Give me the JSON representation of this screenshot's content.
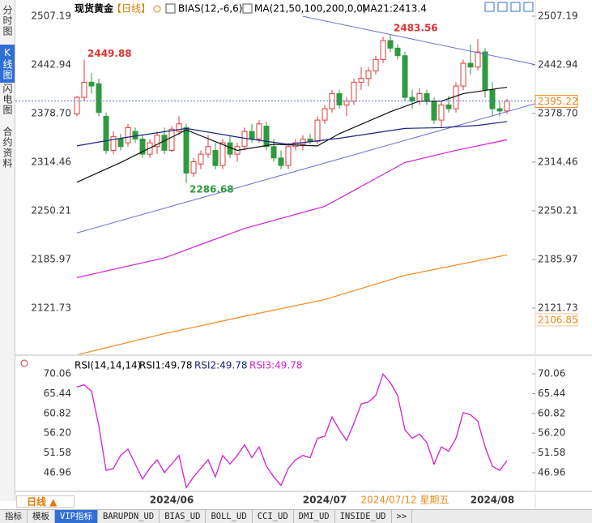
{
  "sidebar": [
    "分时图",
    "K线图",
    "闪电图",
    "合约资料"
  ],
  "header": {
    "name": "现货黄金",
    "period": "【日线】",
    "indicator": "BIAS(12,-6,6)",
    "ma": "MA(21,50,100,200,0,0)",
    "ma21": "MA21:2413.4"
  },
  "rsi_header": {
    "params": "RSI(14,14,14)",
    "rsi1": "RSI1:49.78",
    "rsi2": "RSI2:49.78",
    "rsi3": "RSI3:49.78"
  },
  "date_labels": [
    {
      "index": 13,
      "label": "2024/06"
    },
    {
      "index": 34,
      "label": "2024/07"
    },
    {
      "index": 45,
      "label": "2024/07/12 星期五"
    },
    {
      "index": 57,
      "label": "2024/08"
    }
  ],
  "period_button": "日线 ▲",
  "tabs": [
    "指标",
    "模板",
    "VIP指标",
    "BARUPDN_UD",
    "BIAS_UD",
    "BOLL_UD",
    "CCI_UD",
    "DMI_UD",
    "INSIDE_UD",
    ">>"
  ],
  "chart_data": [
    {
      "type": "candlestick",
      "up_color": "#e03a3a",
      "down_color": "#2f9a3f",
      "open": [
        2378,
        2400,
        2420,
        2418,
        2375,
        2330,
        2345,
        2340,
        2355,
        2345,
        2325,
        2335,
        2350,
        2330,
        2355,
        2360,
        2300,
        2312,
        2325,
        2330,
        2310,
        2340,
        2325,
        2335,
        2355,
        2345,
        2362,
        2335,
        2320,
        2310,
        2335,
        2338,
        2345,
        2342,
        2370,
        2385,
        2405,
        2390,
        2395,
        2420,
        2425,
        2435,
        2450,
        2475,
        2465,
        2455,
        2400,
        2395,
        2405,
        2395,
        2370,
        2390,
        2385,
        2415,
        2445,
        2440,
        2460,
        2410,
        2385,
        2382
      ],
      "high": [
        2402,
        2449.88,
        2432,
        2425,
        2380,
        2355,
        2352,
        2365,
        2360,
        2350,
        2345,
        2355,
        2360,
        2362,
        2375,
        2365,
        2320,
        2330,
        2350,
        2340,
        2345,
        2350,
        2340,
        2360,
        2365,
        2370,
        2368,
        2345,
        2330,
        2340,
        2345,
        2350,
        2352,
        2375,
        2390,
        2410,
        2410,
        2400,
        2425,
        2440,
        2440,
        2455,
        2480,
        2483.56,
        2470,
        2460,
        2410,
        2412,
        2410,
        2400,
        2395,
        2402,
        2420,
        2450,
        2470,
        2477,
        2465,
        2420,
        2395,
        2398
      ],
      "low": [
        2375,
        2395,
        2405,
        2375,
        2325,
        2325,
        2330,
        2335,
        2340,
        2320,
        2320,
        2325,
        2325,
        2328,
        2350,
        2286.68,
        2295,
        2305,
        2320,
        2305,
        2305,
        2320,
        2315,
        2330,
        2340,
        2340,
        2330,
        2315,
        2305,
        2305,
        2330,
        2330,
        2338,
        2338,
        2365,
        2380,
        2385,
        2375,
        2390,
        2410,
        2415,
        2430,
        2445,
        2460,
        2450,
        2395,
        2385,
        2390,
        2390,
        2365,
        2360,
        2380,
        2380,
        2410,
        2430,
        2435,
        2400,
        2375,
        2375,
        2378
      ],
      "close": [
        2400,
        2420,
        2415,
        2380,
        2330,
        2348,
        2335,
        2360,
        2345,
        2325,
        2340,
        2350,
        2330,
        2358,
        2365,
        2300,
        2315,
        2325,
        2335,
        2310,
        2340,
        2325,
        2335,
        2355,
        2345,
        2365,
        2335,
        2320,
        2310,
        2335,
        2340,
        2345,
        2342,
        2370,
        2385,
        2405,
        2390,
        2395,
        2420,
        2425,
        2435,
        2450,
        2475,
        2465,
        2455,
        2400,
        2395,
        2405,
        2395,
        2370,
        2390,
        2385,
        2415,
        2445,
        2440,
        2460,
        2410,
        2385,
        2382,
        2395
      ],
      "series": [
        {
          "name": "MA21",
          "color": "#111111",
          "x": [
            0,
            6,
            15,
            22,
            27,
            33,
            36,
            43,
            47,
            50,
            53,
            59
          ],
          "values": [
            2288,
            2314,
            2357,
            2330,
            2338,
            2336,
            2352,
            2381,
            2395,
            2395,
            2405,
            2413.4
          ]
        },
        {
          "name": "MA50",
          "color": "#1a237e",
          "x": [
            0,
            6,
            15,
            23,
            29,
            36,
            45,
            50,
            55,
            59
          ],
          "values": [
            2336,
            2346,
            2359,
            2346,
            2338,
            2346,
            2359,
            2360,
            2363,
            2368
          ]
        },
        {
          "name": "MA100",
          "color": "#d21fd2",
          "x": [
            0,
            12,
            23,
            34,
            45,
            52,
            59
          ],
          "values": [
            2162,
            2188,
            2227,
            2256,
            2314,
            2330,
            2344
          ]
        },
        {
          "name": "MA200",
          "color": "#f08a1c",
          "x": [
            0,
            12,
            23,
            34,
            45,
            59
          ],
          "values": [
            2060,
            2088,
            2111,
            2133,
            2165,
            2192
          ]
        }
      ],
      "trendlines": [
        {
          "color": "#6b6fd6",
          "x": [
            31,
            63
          ],
          "values": [
            2507,
            2443
          ]
        },
        {
          "color": "#6b6fd6",
          "x": [
            0,
            63
          ],
          "values": [
            2221,
            2392
          ]
        }
      ],
      "last_price": 2395.22,
      "ma200_price": 2106.85,
      "ylim": [
        2055,
        2520
      ],
      "yticks": [
        2507.19,
        2442.94,
        {
          "value": 2378.7,
          "label": "2378.70"
        },
        2314.46,
        2250.21,
        2185.97,
        2121.73
      ]
    },
    {
      "type": "line",
      "series": [
        {
          "name": "RSI",
          "color": "#d21fd2",
          "values": [
            67,
            67.5,
            66,
            58,
            47.5,
            48,
            51,
            52.5,
            49,
            45.5,
            48,
            50,
            47,
            49,
            51,
            43.5,
            46,
            48,
            50,
            46,
            51,
            49,
            51,
            53.5,
            50.5,
            53,
            48.5,
            46,
            44,
            48,
            50,
            51,
            50.5,
            55,
            55.5,
            60,
            57,
            54.5,
            58.5,
            63,
            63.5,
            65,
            70,
            68,
            65,
            57,
            55,
            56,
            54,
            49,
            53,
            52,
            55,
            61,
            60.5,
            59,
            53,
            48.5,
            47.5,
            49.78
          ]
        }
      ],
      "ylim": [
        42.8,
        73.1
      ],
      "yticks": [
        70.06,
        65.44,
        60.82,
        {
          "value": 56.2,
          "label": "56.20"
        },
        51.58,
        46.96
      ]
    }
  ]
}
